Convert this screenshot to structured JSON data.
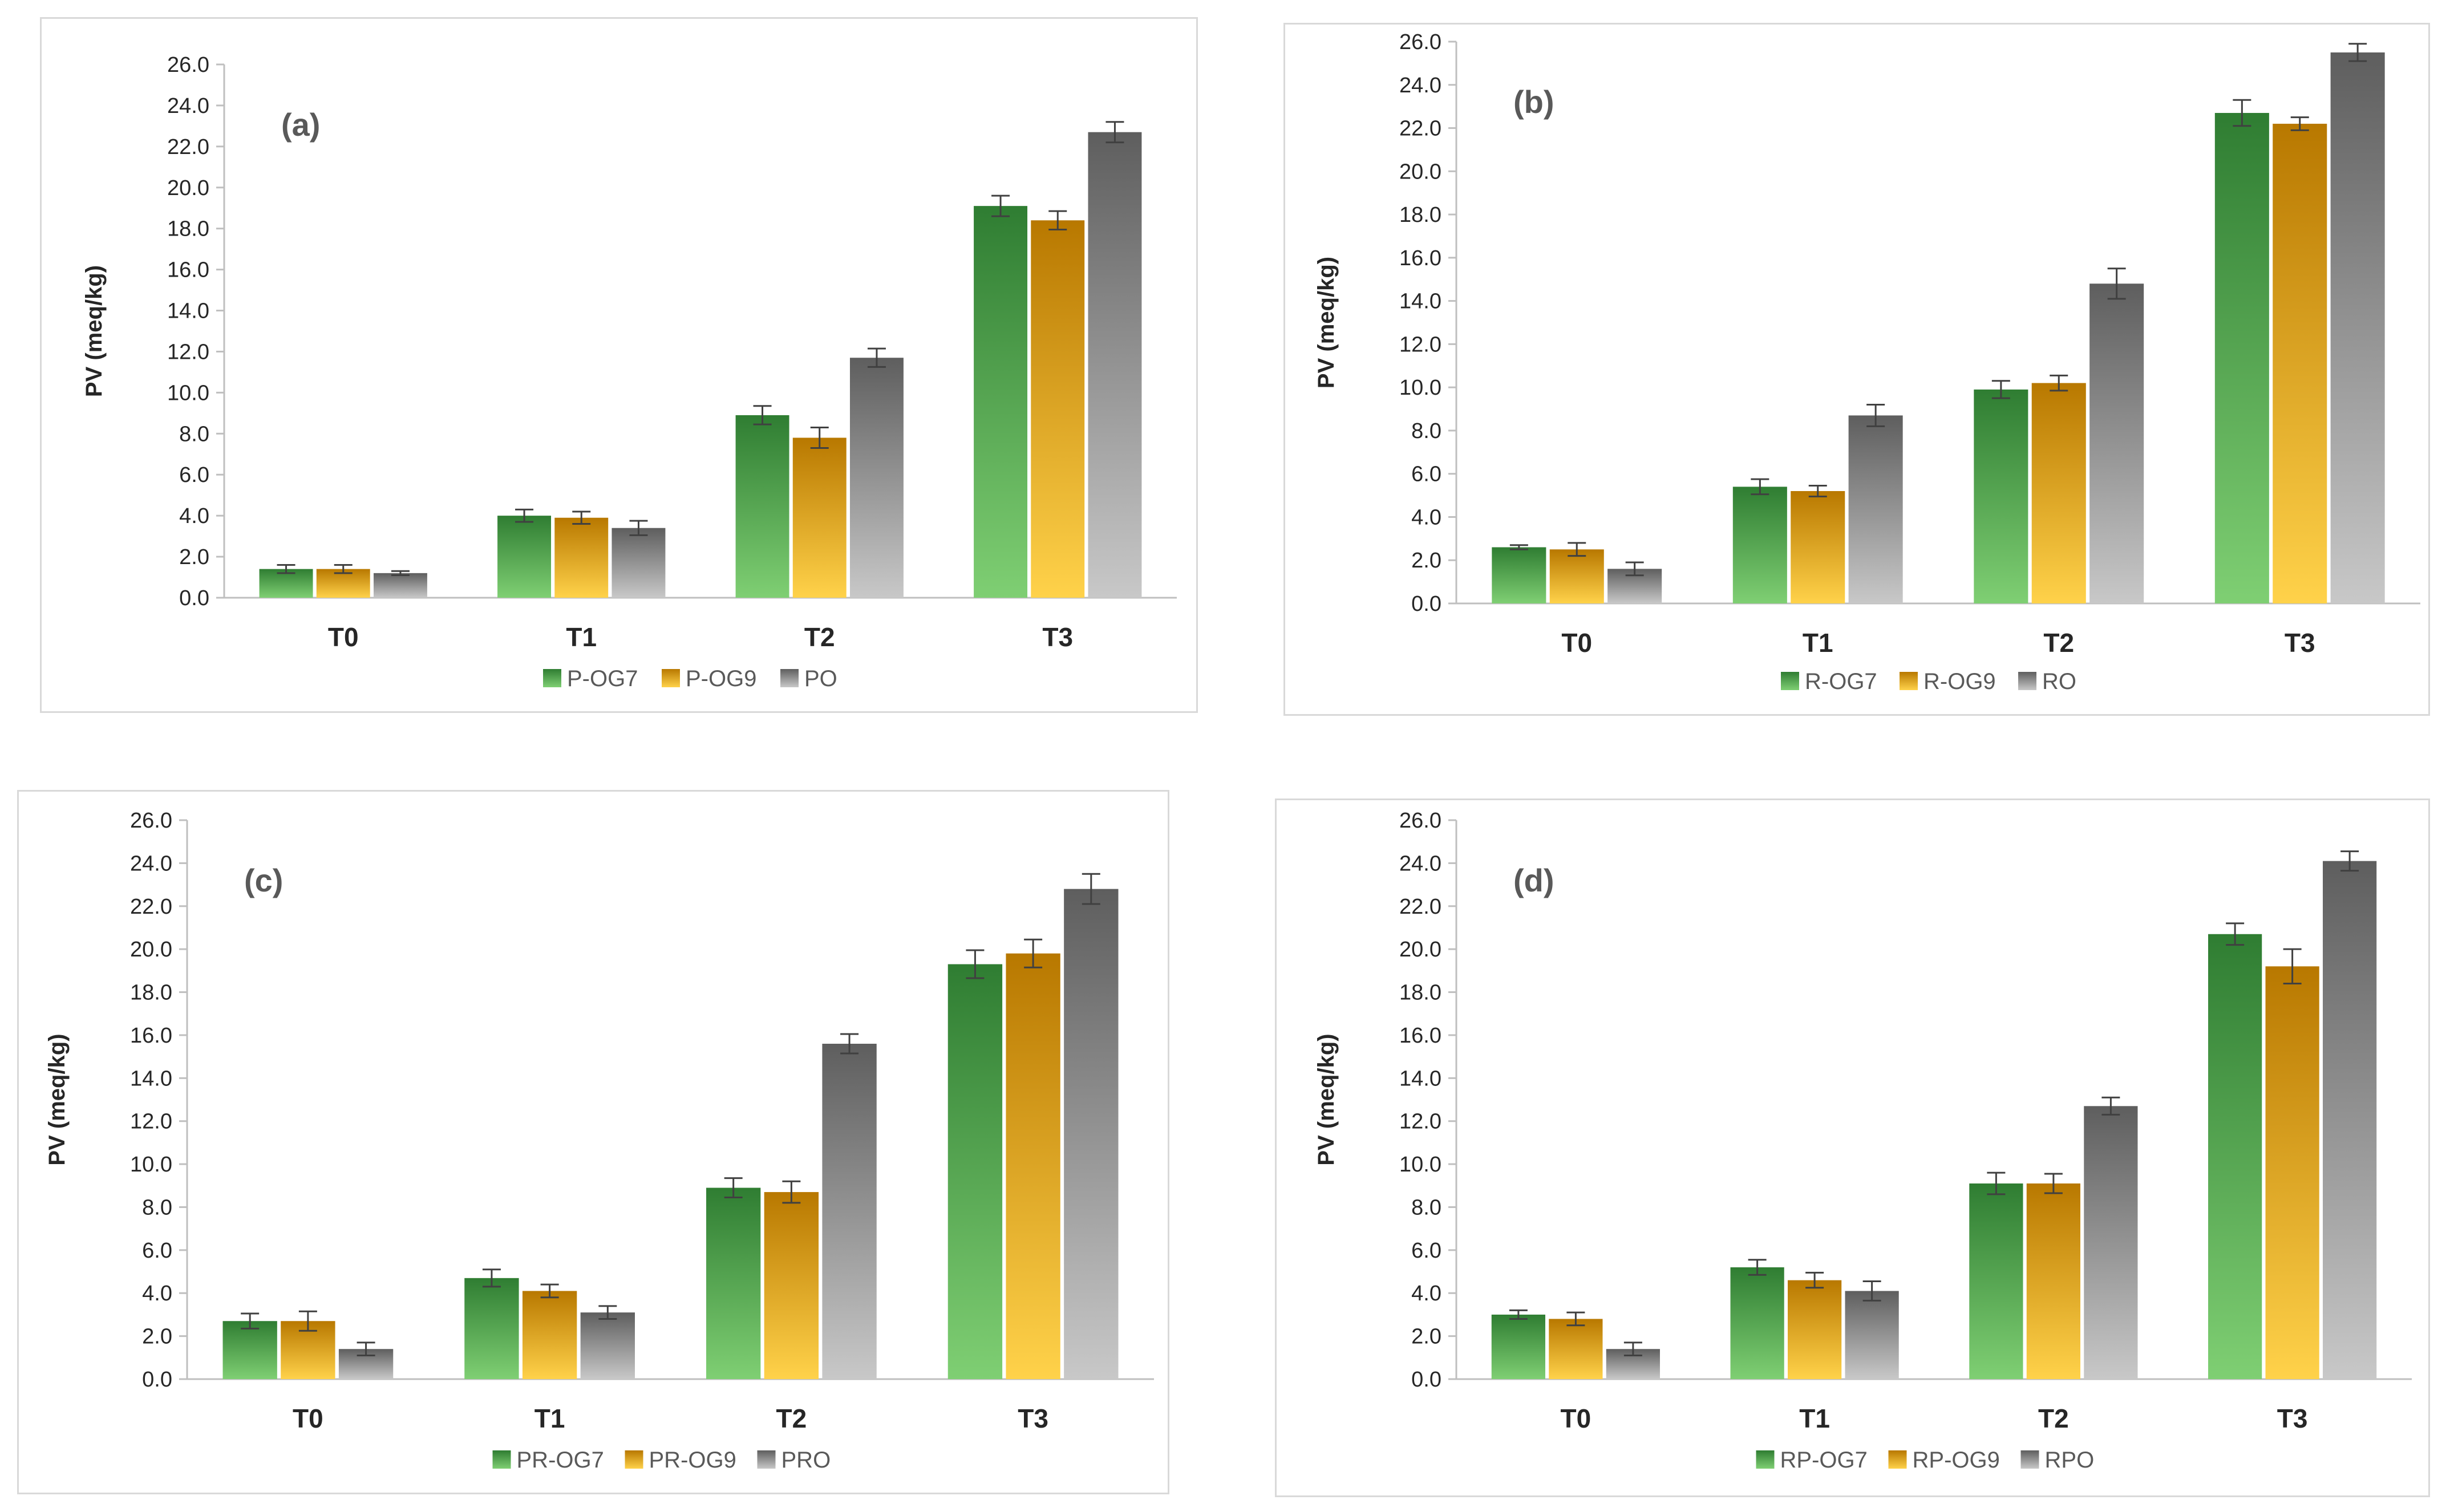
{
  "colors": {
    "green_light": "#7fcf73",
    "green_dark": "#2f7d32",
    "orange_light": "#ffd24a",
    "orange_dark": "#b87800",
    "grey_light": "#c8c8c8",
    "grey_dark": "#5e5e5e",
    "axis": "#bfbfbf",
    "text": "#262626"
  },
  "chart_data": [
    {
      "type": "bar",
      "panel_label": "(a)",
      "ylabel": "PV (meq/kg)",
      "ylim": [
        0,
        26
      ],
      "ystep": 2,
      "yticks": [
        "0.0",
        "2.0",
        "4.0",
        "6.0",
        "8.0",
        "10.0",
        "12.0",
        "14.0",
        "16.0",
        "18.0",
        "20.0",
        "22.0",
        "24.0",
        "26.0"
      ],
      "categories": [
        "T0",
        "T1",
        "T2",
        "T3"
      ],
      "legend_position": "bottom",
      "series": [
        {
          "name": "P-OG7",
          "color": "green",
          "values": [
            1.4,
            4.0,
            8.9,
            19.1
          ],
          "errors": [
            0.2,
            0.3,
            0.45,
            0.5
          ]
        },
        {
          "name": "P-OG9",
          "color": "orange",
          "values": [
            1.4,
            3.9,
            7.8,
            18.4
          ],
          "errors": [
            0.2,
            0.3,
            0.5,
            0.45
          ]
        },
        {
          "name": "PO",
          "color": "grey",
          "values": [
            1.2,
            3.4,
            11.7,
            22.7
          ],
          "errors": [
            0.1,
            0.35,
            0.45,
            0.5
          ]
        }
      ]
    },
    {
      "type": "bar",
      "panel_label": "(b)",
      "ylabel": "PV (meq/kg)",
      "ylim": [
        0,
        26
      ],
      "ystep": 2,
      "yticks": [
        "0.0",
        "2.0",
        "4.0",
        "6.0",
        "8.0",
        "10.0",
        "12.0",
        "14.0",
        "16.0",
        "18.0",
        "20.0",
        "22.0",
        "24.0",
        "26.0"
      ],
      "categories": [
        "T0",
        "T1",
        "T2",
        "T3"
      ],
      "legend_position": "bottom",
      "series": [
        {
          "name": "R-OG7",
          "color": "green",
          "values": [
            2.6,
            5.4,
            9.9,
            22.7
          ],
          "errors": [
            0.1,
            0.35,
            0.4,
            0.6
          ]
        },
        {
          "name": "R-OG9",
          "color": "orange",
          "values": [
            2.5,
            5.2,
            10.2,
            22.2
          ],
          "errors": [
            0.3,
            0.25,
            0.35,
            0.3
          ]
        },
        {
          "name": "RO",
          "color": "grey",
          "values": [
            1.6,
            8.7,
            14.8,
            25.5
          ],
          "errors": [
            0.3,
            0.5,
            0.7,
            0.4
          ]
        }
      ]
    },
    {
      "type": "bar",
      "panel_label": "(c)",
      "ylabel": "PV (meq/kg)",
      "ylim": [
        0,
        26
      ],
      "ystep": 2,
      "yticks": [
        "0.0",
        "2.0",
        "4.0",
        "6.0",
        "8.0",
        "10.0",
        "12.0",
        "14.0",
        "16.0",
        "18.0",
        "20.0",
        "22.0",
        "24.0",
        "26.0"
      ],
      "categories": [
        "T0",
        "T1",
        "T2",
        "T3"
      ],
      "legend_position": "bottom",
      "series": [
        {
          "name": "PR-OG7",
          "color": "green",
          "values": [
            2.7,
            4.7,
            8.9,
            19.3
          ],
          "errors": [
            0.35,
            0.4,
            0.45,
            0.65
          ]
        },
        {
          "name": "PR-OG9",
          "color": "orange",
          "values": [
            2.7,
            4.1,
            8.7,
            19.8
          ],
          "errors": [
            0.45,
            0.3,
            0.5,
            0.65
          ]
        },
        {
          "name": "PRO",
          "color": "grey",
          "values": [
            1.4,
            3.1,
            15.6,
            22.8
          ],
          "errors": [
            0.3,
            0.3,
            0.45,
            0.7
          ]
        }
      ]
    },
    {
      "type": "bar",
      "panel_label": "(d)",
      "ylabel": "PV (meq/kg)",
      "ylim": [
        0,
        26
      ],
      "ystep": 2,
      "yticks": [
        "0.0",
        "2.0",
        "4.0",
        "6.0",
        "8.0",
        "10.0",
        "12.0",
        "14.0",
        "16.0",
        "18.0",
        "20.0",
        "22.0",
        "24.0",
        "26.0"
      ],
      "categories": [
        "T0",
        "T1",
        "T2",
        "T3"
      ],
      "legend_position": "bottom",
      "series": [
        {
          "name": "RP-OG7",
          "color": "green",
          "values": [
            3.0,
            5.2,
            9.1,
            20.7
          ],
          "errors": [
            0.2,
            0.35,
            0.5,
            0.5
          ]
        },
        {
          "name": "RP-OG9",
          "color": "orange",
          "values": [
            2.8,
            4.6,
            9.1,
            19.2
          ],
          "errors": [
            0.3,
            0.35,
            0.45,
            0.8
          ]
        },
        {
          "name": "RPO",
          "color": "grey",
          "values": [
            1.4,
            4.1,
            12.7,
            24.1
          ],
          "errors": [
            0.3,
            0.45,
            0.4,
            0.45
          ]
        }
      ]
    }
  ]
}
